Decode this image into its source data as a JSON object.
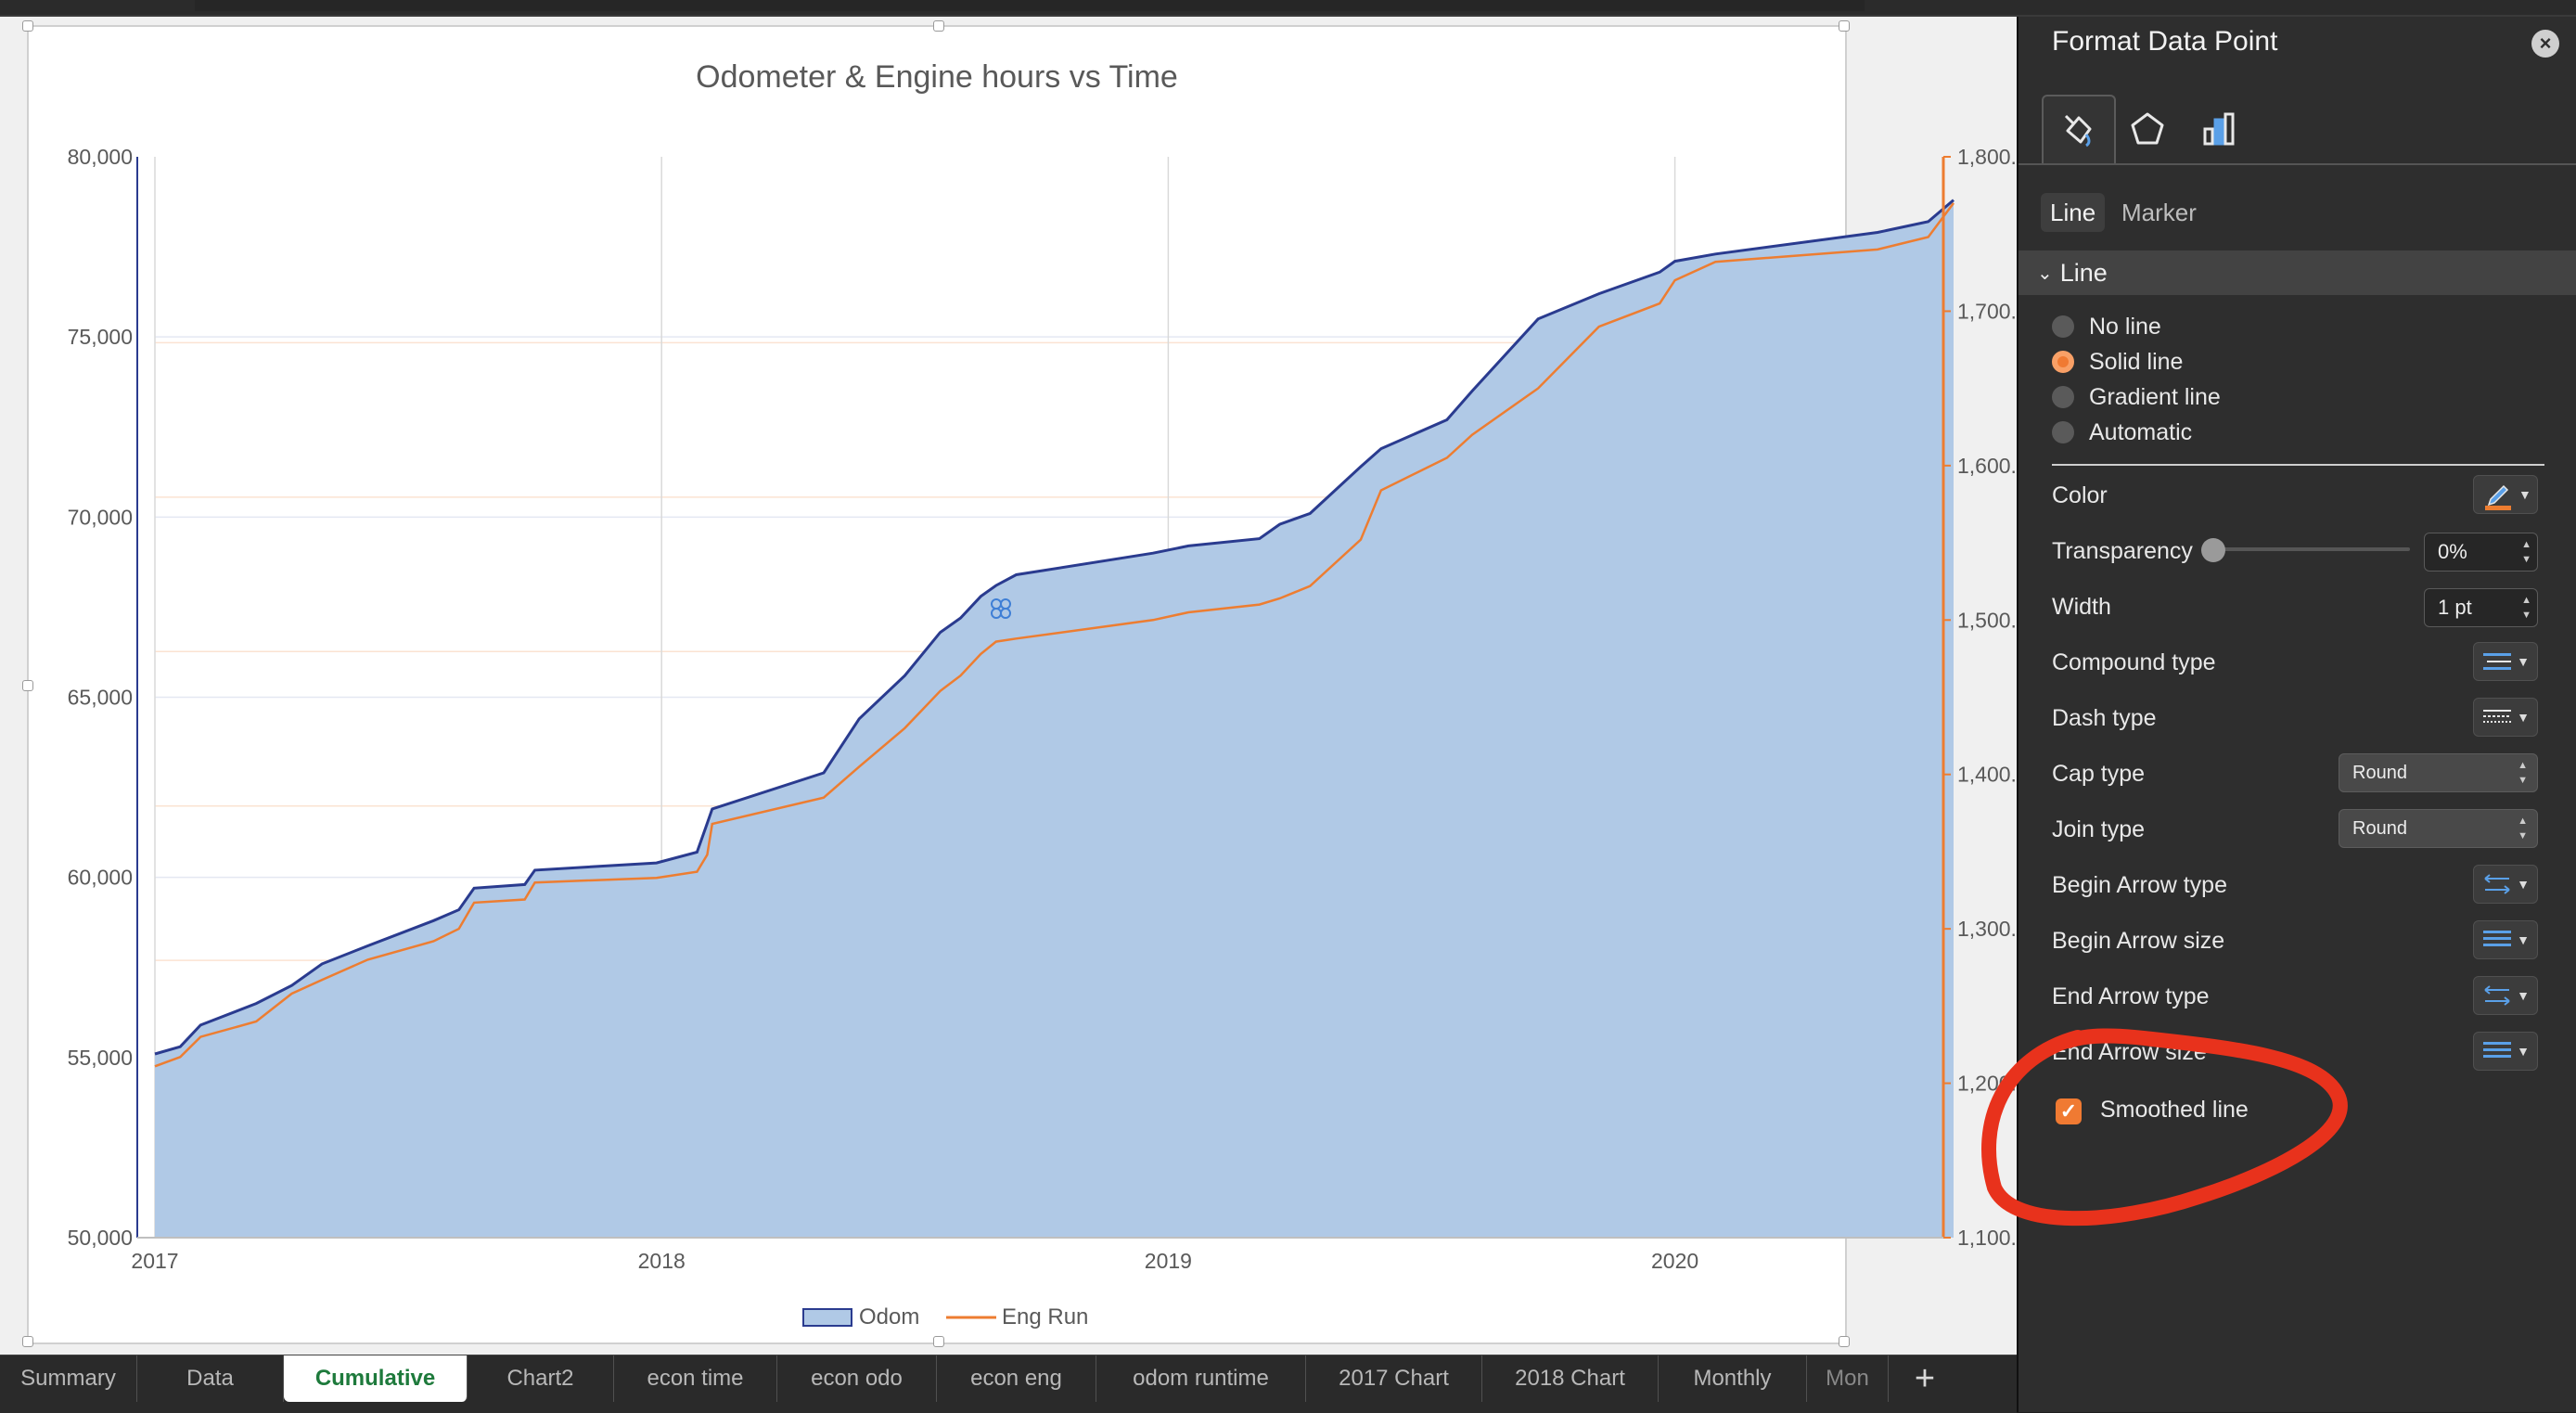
{
  "chart": {
    "title": "Odometer & Engine hours vs Time"
  },
  "chart_data": {
    "type": "area",
    "title": "Odometer & Engine hours vs Time",
    "xlabel": "",
    "ylabel": "",
    "x_ticks": [
      "2017",
      "2018",
      "2019",
      "2020"
    ],
    "xlim": [
      2017.0,
      2020.55
    ],
    "y_left": {
      "lim": [
        50000,
        80000
      ],
      "ticks": [
        "50,000",
        "55,000",
        "60,000",
        "65,000",
        "70,000",
        "75,000",
        "80,000"
      ]
    },
    "y_right": {
      "lim": [
        1100,
        1800
      ],
      "ticks": [
        "1,100.0",
        "1,200.0",
        "1,300.0",
        "1,400.0",
        "1,500.0",
        "1,600.0",
        "1,700.0",
        "1,800.0"
      ]
    },
    "grid": "vertical at year ticks, horizontal on secondary axis",
    "legend_position": "bottom",
    "series": [
      {
        "name": "Odom",
        "type": "area",
        "axis": "left",
        "color": "#b0c9e6",
        "line_color": "#2a3b8f",
        "x": [
          2017.0,
          2017.05,
          2017.09,
          2017.2,
          2017.27,
          2017.33,
          2017.42,
          2017.55,
          2017.6,
          2017.63,
          2017.73,
          2017.75,
          2017.99,
          2018.07,
          2018.09,
          2018.1,
          2018.32,
          2018.39,
          2018.48,
          2018.55,
          2018.59,
          2018.63,
          2018.66,
          2018.7,
          2018.97,
          2019.04,
          2019.18,
          2019.22,
          2019.28,
          2019.38,
          2019.42,
          2019.55,
          2019.6,
          2019.73,
          2019.85,
          2019.97,
          2020.0,
          2020.08,
          2020.4,
          2020.5,
          2020.55
        ],
        "values": [
          55100,
          55300,
          55900,
          56500,
          57000,
          57600,
          58100,
          58800,
          59100,
          59700,
          59800,
          60200,
          60400,
          60700,
          61500,
          61900,
          62900,
          64400,
          65600,
          66800,
          67200,
          67800,
          68100,
          68400,
          69000,
          69200,
          69400,
          69800,
          70100,
          71400,
          71900,
          72700,
          73500,
          75500,
          76200,
          76800,
          77100,
          77300,
          77900,
          78200,
          78800
        ]
      },
      {
        "name": "Eng Run",
        "type": "line",
        "axis": "right",
        "color": "#ed7d31",
        "x": [
          2017.0,
          2017.05,
          2017.09,
          2017.2,
          2017.27,
          2017.33,
          2017.42,
          2017.55,
          2017.6,
          2017.63,
          2017.73,
          2017.75,
          2017.99,
          2018.07,
          2018.09,
          2018.1,
          2018.32,
          2018.39,
          2018.48,
          2018.55,
          2018.59,
          2018.63,
          2018.66,
          2018.7,
          2018.97,
          2019.04,
          2019.18,
          2019.22,
          2019.28,
          2019.38,
          2019.42,
          2019.55,
          2019.6,
          2019.73,
          2019.85,
          2019.97,
          2020.0,
          2020.08,
          2020.4,
          2020.5,
          2020.55
        ],
        "values": [
          1211,
          1217,
          1230,
          1240,
          1258,
          1267,
          1280,
          1292,
          1300,
          1317,
          1319,
          1330,
          1333,
          1337,
          1348,
          1368,
          1385,
          1405,
          1430,
          1454,
          1464,
          1478,
          1486,
          1488,
          1500,
          1505,
          1510,
          1514,
          1522,
          1552,
          1584,
          1605,
          1620,
          1650,
          1690,
          1705,
          1720,
          1732,
          1740,
          1748,
          1770
        ]
      }
    ]
  },
  "legend": {
    "odom": "Odom",
    "engrun": "Eng Run"
  },
  "sheet_tabs": [
    {
      "label": "Summary"
    },
    {
      "label": "Data"
    },
    {
      "label": "Cumulative"
    },
    {
      "label": "Chart2"
    },
    {
      "label": "econ time"
    },
    {
      "label": "econ odo"
    },
    {
      "label": "econ eng"
    },
    {
      "label": "odom runtime"
    },
    {
      "label": "2017 Chart"
    },
    {
      "label": "2018 Chart"
    },
    {
      "label": "Monthly"
    },
    {
      "label": "Mon"
    }
  ],
  "active_tab": "Cumulative",
  "add_sheet": "+",
  "panel": {
    "title": "Format Data Point",
    "close": "×",
    "subtabs": {
      "line": "Line",
      "marker": "Marker"
    },
    "section": "Line",
    "line_options": [
      "No line",
      "Solid line",
      "Gradient line",
      "Automatic"
    ],
    "selected_line_option": "Solid line",
    "props": {
      "color": "Color",
      "transparency": "Transparency",
      "transparency_value": "0%",
      "width": "Width",
      "width_value": "1 pt",
      "compound": "Compound type",
      "dash": "Dash type",
      "cap": "Cap type",
      "cap_value": "Round",
      "join": "Join type",
      "join_value": "Round",
      "begin_arrow_type": "Begin Arrow type",
      "begin_arrow_size": "Begin Arrow size",
      "end_arrow_type": "End Arrow type",
      "end_arrow_size": "End Arrow size",
      "smoothed": "Smoothed line"
    },
    "line_color": "#ed7d31",
    "smoothed_checked": true
  }
}
